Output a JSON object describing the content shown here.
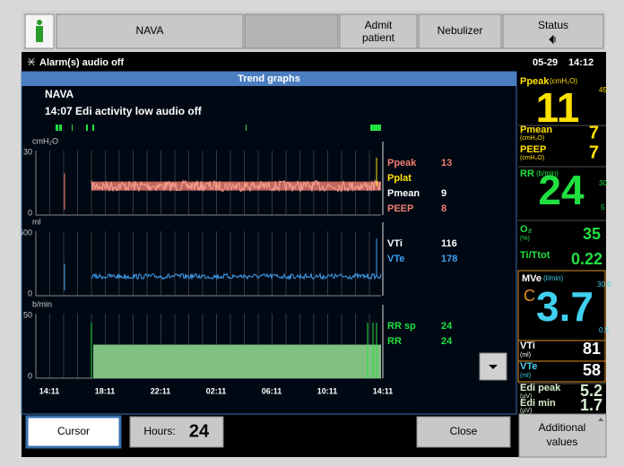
{
  "top_bar": {
    "mode": "NAVA",
    "admit": [
      "Admit",
      "patient"
    ],
    "nebulizer": "Nebulizer",
    "status": "Status"
  },
  "alarm_bar": {
    "message": "Alarm(s) audio off",
    "date": "05-29",
    "time": "14:12"
  },
  "trend_window": {
    "title": "Trend graphs",
    "mode": "NAVA",
    "event": "14:07 Edi activity low audio off",
    "graphs": [
      {
        "unit": "cmH₂O",
        "y_max": "30",
        "y_min": "0",
        "legend": [
          {
            "name": "Ppeak",
            "value": "13"
          },
          {
            "name": "Pplat"
          },
          {
            "name": "Pmean",
            "value": "9"
          },
          {
            "name": "PEEP",
            "value": "8"
          }
        ]
      },
      {
        "unit": "ml",
        "y_max": "500",
        "y_min": "0",
        "legend": [
          {
            "name": "VTi",
            "value": "116"
          },
          {
            "name": "VTe",
            "value": "178"
          }
        ]
      },
      {
        "unit": "b/min",
        "y_max": "50",
        "y_min": "0",
        "legend": [
          {
            "name": "RR sp",
            "value": "24"
          },
          {
            "name": "RR",
            "value": "24"
          }
        ]
      }
    ],
    "time_labels": [
      "14:11",
      "18:11",
      "22:11",
      "02:11",
      "06:11",
      "10:11",
      "14:11"
    ]
  },
  "bottom_bar": {
    "cursor": "Cursor",
    "hours_label": "Hours:",
    "hours_value": "24",
    "close": "Close",
    "additional": [
      "Additional",
      "values"
    ]
  },
  "side_panel": {
    "ppeak": {
      "label": "Ppeak",
      "unit": "(cmH₂O)",
      "high": "45",
      "value": "11"
    },
    "pmean": {
      "label": "Pmean",
      "unit": "(cmH₂O)",
      "value": "7"
    },
    "peep": {
      "label": "PEEP",
      "unit": "(cmH₂O)",
      "value": "7"
    },
    "rr": {
      "label": "RR",
      "unit": "(b/min)",
      "high": "30",
      "value": "24",
      "low": "5"
    },
    "o2": {
      "label": "O₂",
      "unit": "(%)",
      "value": "35"
    },
    "ti_ttot": {
      "label": "Ti/Ttot",
      "value": "0.22"
    },
    "mve": {
      "label": "MVe",
      "unit": "(l/min)",
      "high": "30.0",
      "flag": "C",
      "value": "3.7",
      "low": "0.5"
    },
    "vti": {
      "label": "VTi",
      "unit": "(ml)",
      "value": "81"
    },
    "vte": {
      "label": "VTe",
      "unit": "(ml)",
      "value": "58"
    },
    "edi_peak": {
      "label": "Edi peak",
      "unit": "(µV)",
      "value": "5.2"
    },
    "edi_min": {
      "label": "Edi min",
      "unit": "(µV)",
      "value": "1.7"
    }
  }
}
